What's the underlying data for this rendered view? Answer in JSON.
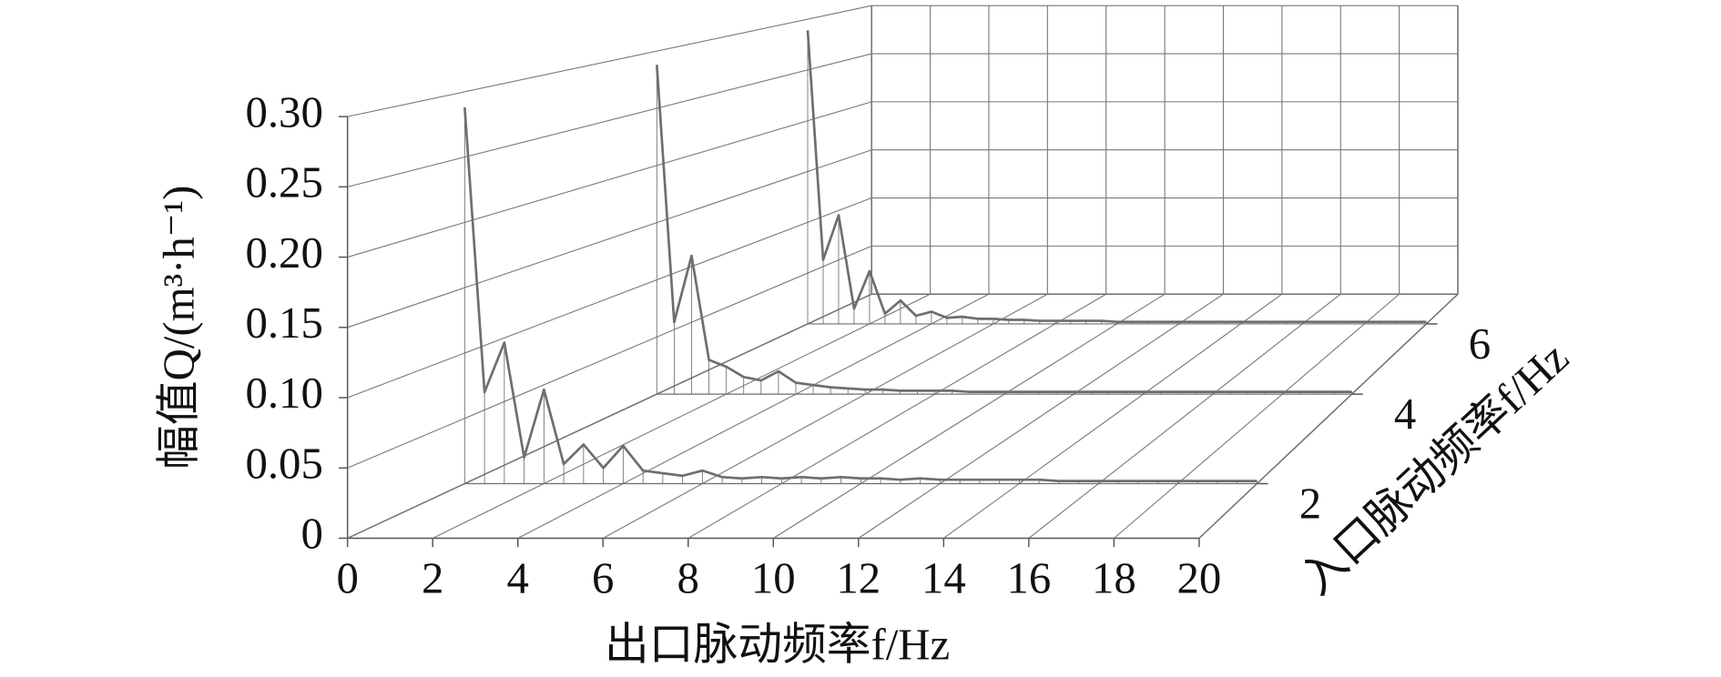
{
  "chart_data": {
    "type": "waterfall3d",
    "x_label": "出口脉动频率f/Hz",
    "y_label": "入口脉动频率f/Hz",
    "z_label": "幅值Q/(m³·h⁻¹)",
    "x": [
      0,
      0.5,
      1,
      1.5,
      2,
      2.5,
      3,
      3.5,
      4,
      4.5,
      5,
      5.5,
      6,
      6.5,
      7,
      7.5,
      8,
      8.5,
      9,
      9.5,
      10,
      10.5,
      11,
      11.5,
      12,
      12.5,
      13,
      13.5,
      14,
      14.5,
      15,
      15.5,
      16,
      16.5,
      17,
      17.5,
      18,
      18.5,
      19,
      19.5,
      20
    ],
    "xlim": [
      0,
      20
    ],
    "xticks": [
      0,
      2,
      4,
      6,
      8,
      10,
      12,
      14,
      16,
      18,
      20
    ],
    "ylim": [
      1,
      7
    ],
    "yticks": [
      2,
      4,
      6
    ],
    "zlim": [
      0,
      0.3
    ],
    "zticks": [
      0,
      0.05,
      {
        "value": 0.1,
        "label": "0.10"
      },
      0.15,
      {
        "value": 0.2,
        "label": "0.20"
      },
      0.25,
      {
        "value": 0.3,
        "label": "0.30"
      }
    ],
    "grid": true,
    "series": [
      {
        "inlet": 2,
        "color": "#6e6e6e",
        "values": [
          0.288,
          0.07,
          0.108,
          0.02,
          0.072,
          0.015,
          0.03,
          0.012,
          0.029,
          0.01,
          0.008,
          0.006,
          0.01,
          0.005,
          0.004,
          0.005,
          0.004,
          0.005,
          0.004,
          0.005,
          0.004,
          0.004,
          0.003,
          0.004,
          0.003,
          0.003,
          0.003,
          0.003,
          0.003,
          0.003,
          0.002,
          0.002,
          0.002,
          0.002,
          0.002,
          0.002,
          0.002,
          0.002,
          0.002,
          0.002,
          0.002
        ]
      },
      {
        "inlet": 4,
        "color": "#6e6e6e",
        "values": [
          0.288,
          0.063,
          0.121,
          0.03,
          0.024,
          0.015,
          0.012,
          0.02,
          0.01,
          0.008,
          0.006,
          0.005,
          0.004,
          0.004,
          0.003,
          0.003,
          0.003,
          0.003,
          0.002,
          0.002,
          0.002,
          0.002,
          0.002,
          0.002,
          0.002,
          0.002,
          0.002,
          0.002,
          0.002,
          0.002,
          0.002,
          0.002,
          0.002,
          0.002,
          0.002,
          0.002,
          0.002,
          0.002,
          0.002,
          0.002,
          0.002
        ]
      },
      {
        "inlet": 6,
        "color": "#6e6e6e",
        "values": [
          0.289,
          0.063,
          0.107,
          0.015,
          0.052,
          0.01,
          0.023,
          0.008,
          0.012,
          0.006,
          0.007,
          0.005,
          0.005,
          0.004,
          0.004,
          0.003,
          0.003,
          0.003,
          0.003,
          0.003,
          0.002,
          0.002,
          0.002,
          0.002,
          0.002,
          0.002,
          0.002,
          0.002,
          0.002,
          0.002,
          0.002,
          0.002,
          0.002,
          0.002,
          0.002,
          0.002,
          0.002,
          0.002,
          0.002,
          0.002,
          0.002
        ]
      }
    ]
  }
}
